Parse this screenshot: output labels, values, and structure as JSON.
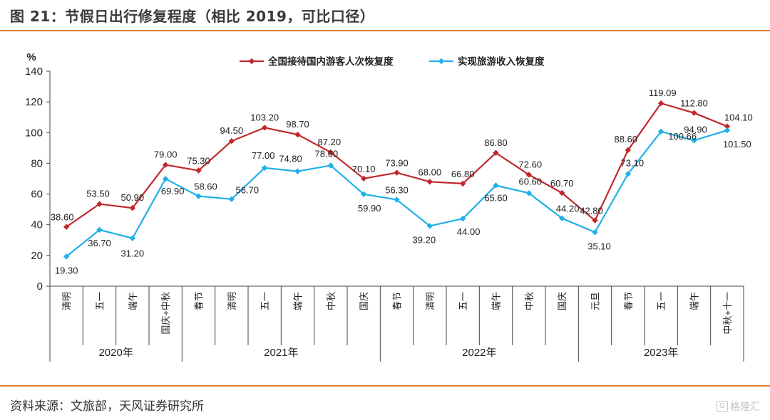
{
  "figure_title": "图 21：节假日出行修复程度（相比 2019，可比口径）",
  "source_note": "资料来源：文旅部，天风证券研究所",
  "watermark": "格隆汇",
  "chart_data": {
    "type": "line",
    "ylabel": "%",
    "ylim": [
      0,
      140
    ],
    "yticks": [
      0,
      20,
      40,
      60,
      80,
      100,
      120,
      140
    ],
    "legend_position": "top",
    "grid": false,
    "categories": [
      "清明",
      "五一",
      "端午",
      "国庆+中秋",
      "春节",
      "清明",
      "五一",
      "端午",
      "中秋",
      "国庆",
      "春节",
      "清明",
      "五一",
      "端午",
      "中秋",
      "国庆",
      "元旦",
      "春节",
      "五一",
      "端午",
      "中秋+十一"
    ],
    "groups": [
      {
        "label": "2020年",
        "count": 4
      },
      {
        "label": "2021年",
        "count": 6
      },
      {
        "label": "2022年",
        "count": 6
      },
      {
        "label": "2023年",
        "count": 5
      }
    ],
    "series": [
      {
        "name": "全国接待国内游客人次恢复度",
        "color": "#c0282d",
        "values": [
          38.6,
          53.5,
          50.9,
          79.0,
          75.3,
          94.5,
          103.2,
          98.7,
          87.2,
          70.1,
          73.9,
          68.0,
          66.8,
          86.8,
          72.6,
          60.7,
          42.8,
          88.6,
          119.09,
          112.8,
          104.1
        ],
        "labels": [
          "38.60",
          "53.50",
          "50.90",
          "79.00",
          "75.30",
          "94.50",
          "103.20",
          "98.70",
          "87.20",
          "70.10",
          "73.90",
          "68.00",
          "66.80",
          "86.80",
          "72.60",
          "60.70",
          "42.80",
          "88.60",
          "119.09",
          "112.80",
          "104.10"
        ]
      },
      {
        "name": "实现旅游收入恢复度",
        "color": "#1fb0e8",
        "values": [
          19.3,
          36.7,
          31.2,
          69.9,
          58.6,
          56.7,
          77.0,
          74.8,
          78.6,
          59.9,
          56.3,
          39.2,
          44.0,
          65.6,
          60.6,
          44.2,
          35.1,
          73.1,
          100.66,
          94.9,
          101.5
        ],
        "labels": [
          "19.30",
          "36.70",
          "31.20",
          "69.90",
          "58.60",
          "56.70",
          "77.00",
          "74.80",
          "78.60",
          "59.90",
          "56.30",
          "39.20",
          "44.00",
          "65.60",
          "60.60",
          "44.20",
          "35.10",
          "73.10",
          "100.66",
          "94.90",
          "101.50"
        ]
      }
    ]
  }
}
